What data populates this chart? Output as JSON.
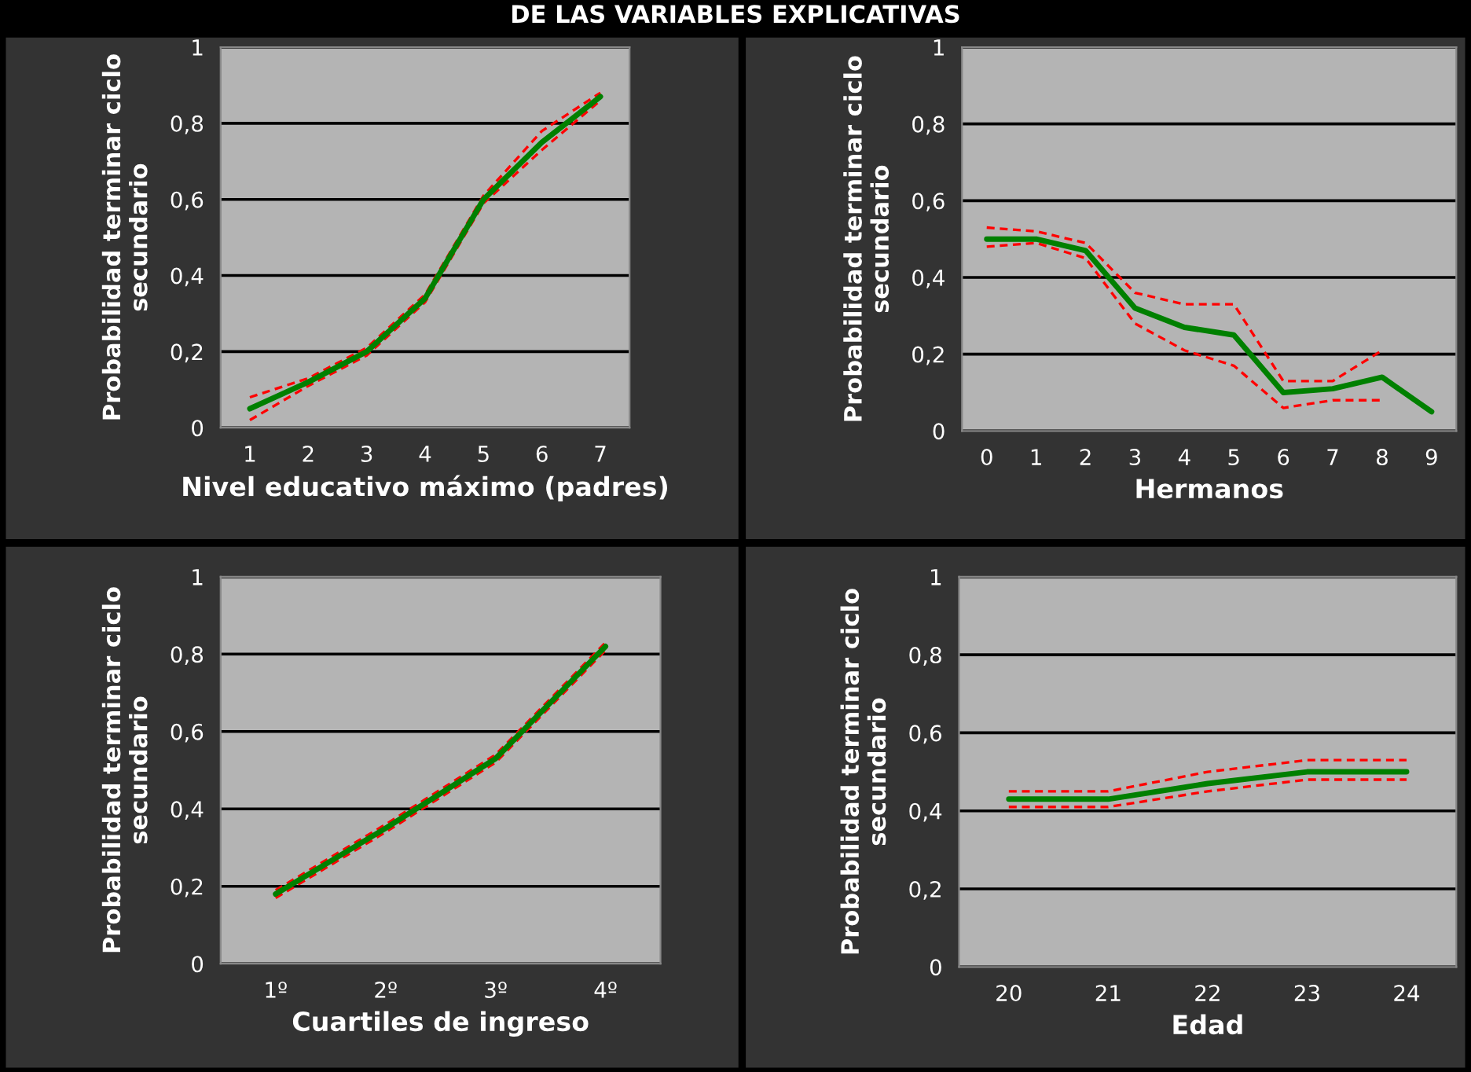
{
  "chart_data": [
    {
      "type": "line",
      "title": "DE LAS VARIABLES EXPLICATIVAS",
      "xlabel": "Nivel educativo máximo (padres)",
      "ylabel": "Probabilidad terminar ciclo\nsecundario",
      "categories": [
        "1",
        "2",
        "3",
        "4",
        "5",
        "6",
        "7"
      ],
      "ylim": [
        0,
        1
      ],
      "yticks": [
        0,
        {
          "value": 0.2,
          "label": "0,2"
        },
        {
          "value": 0.4,
          "label": "0,4"
        },
        {
          "value": 0.6,
          "label": "0,6"
        },
        {
          "value": 0.8,
          "label": "0,8"
        },
        1
      ],
      "grid": "y",
      "legend": false,
      "series": [
        {
          "color": "#008000",
          "line_style": "solid",
          "values": [
            0.05,
            0.12,
            0.2,
            0.34,
            0.6,
            0.75,
            0.87
          ]
        },
        {
          "color": "#ff0000",
          "line_style": "dashed",
          "values": [
            0.08,
            0.13,
            0.21,
            0.35,
            0.61,
            0.78,
            0.88
          ]
        },
        {
          "color": "#ff0000",
          "line_style": "dashed",
          "values": [
            0.02,
            0.11,
            0.19,
            0.33,
            0.59,
            0.73,
            0.86
          ]
        }
      ]
    },
    {
      "type": "line",
      "xlabel": "Hermanos",
      "ylabel": "Probabilidad terminar ciclo\nsecundario",
      "categories": [
        "0",
        "1",
        "2",
        "3",
        "4",
        "5",
        "6",
        "7",
        "8",
        "9"
      ],
      "ylim": [
        0,
        1
      ],
      "yticks": [
        0,
        {
          "value": 0.2,
          "label": "0,2"
        },
        {
          "value": 0.4,
          "label": "0,4"
        },
        {
          "value": 0.6,
          "label": "0,6"
        },
        {
          "value": 0.8,
          "label": "0,8"
        },
        1
      ],
      "grid": "y",
      "legend": false,
      "series": [
        {
          "color": "#008000",
          "line_style": "solid",
          "values": [
            0.5,
            0.5,
            0.47,
            0.32,
            0.27,
            0.25,
            0.1,
            0.11,
            0.14,
            0.05
          ]
        },
        {
          "color": "#ff0000",
          "line_style": "dashed",
          "values": [
            0.53,
            0.52,
            0.49,
            0.36,
            0.33,
            0.33,
            0.13,
            0.13,
            0.21,
            null
          ]
        },
        {
          "color": "#ff0000",
          "line_style": "dashed",
          "values": [
            0.48,
            0.49,
            0.45,
            0.28,
            0.21,
            0.17,
            0.06,
            0.08,
            0.08,
            null
          ]
        }
      ]
    },
    {
      "type": "line",
      "xlabel": "Cuartiles de ingreso",
      "ylabel": "Probabilidad terminar ciclo\nsecundario",
      "categories": [
        "1º",
        "2º",
        "3º",
        "4º"
      ],
      "ylim": [
        0,
        1
      ],
      "yticks": [
        0,
        {
          "value": 0.2,
          "label": "0,2"
        },
        {
          "value": 0.4,
          "label": "0,4"
        },
        {
          "value": 0.6,
          "label": "0,6"
        },
        {
          "value": 0.8,
          "label": "0,8"
        },
        1
      ],
      "grid": "y",
      "legend": false,
      "series": [
        {
          "color": "#008000",
          "line_style": "solid",
          "values": [
            0.18,
            0.35,
            0.53,
            0.82
          ]
        },
        {
          "color": "#ff0000",
          "line_style": "dashed",
          "values": [
            0.19,
            0.36,
            0.54,
            0.83
          ]
        },
        {
          "color": "#ff0000",
          "line_style": "dashed",
          "values": [
            0.17,
            0.34,
            0.52,
            0.81
          ]
        }
      ]
    },
    {
      "type": "line",
      "xlabel": "Edad",
      "ylabel": "Probabilidad terminar ciclo\nsecundario",
      "categories": [
        "20",
        "21",
        "22",
        "23",
        "24"
      ],
      "ylim": [
        0,
        1
      ],
      "yticks": [
        0,
        {
          "value": 0.2,
          "label": "0,2"
        },
        {
          "value": 0.4,
          "label": "0,4"
        },
        {
          "value": 0.6,
          "label": "0,6"
        },
        {
          "value": 0.8,
          "label": "0,8"
        },
        1
      ],
      "grid": "y",
      "legend": false,
      "series": [
        {
          "color": "#008000",
          "line_style": "solid",
          "values": [
            0.43,
            0.43,
            0.47,
            0.5,
            0.5
          ]
        },
        {
          "color": "#ff0000",
          "line_style": "dashed",
          "values": [
            0.45,
            0.45,
            0.5,
            0.53,
            0.53
          ]
        },
        {
          "color": "#ff0000",
          "line_style": "dashed",
          "values": [
            0.41,
            0.41,
            0.45,
            0.48,
            0.48
          ]
        }
      ]
    }
  ]
}
